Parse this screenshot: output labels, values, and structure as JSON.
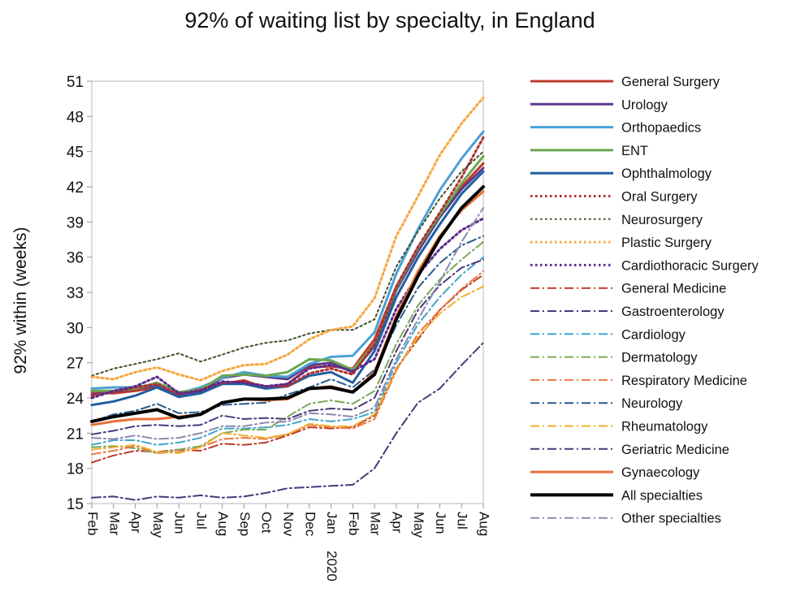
{
  "chart_data": {
    "type": "line",
    "title": "92% of waiting list by specialty, in England",
    "xlabel": "",
    "ylabel": "92% within  (weeks)",
    "ylim": [
      15,
      51
    ],
    "yticks": [
      15,
      18,
      21,
      24,
      27,
      30,
      33,
      36,
      39,
      42,
      45,
      48,
      51
    ],
    "categories": [
      "Feb",
      "Mar",
      "Apr",
      "May",
      "Jun",
      "Jul",
      "Aug",
      "Sep",
      "Oct",
      "Nov",
      "Dec",
      "Jan",
      "Feb",
      "Mar",
      "Apr",
      "May",
      "Jun",
      "Jul",
      "Aug"
    ],
    "year_label": "2020",
    "grid": false,
    "legend_position": "right",
    "series": [
      {
        "name": "General Surgery",
        "color": "#c0392b",
        "style": "solid",
        "width": 3,
        "values": [
          24.5,
          24.4,
          24.6,
          24.9,
          24.1,
          24.4,
          25.2,
          25.5,
          24.8,
          25.2,
          26.6,
          26.7,
          26.5,
          29.0,
          33.5,
          36.8,
          39.6,
          42.0,
          44.0
        ]
      },
      {
        "name": "Urology",
        "color": "#5b3a8c",
        "style": "solid",
        "width": 3,
        "values": [
          24.3,
          24.5,
          24.8,
          25.1,
          24.3,
          24.6,
          25.7,
          26.0,
          25.8,
          25.6,
          26.8,
          27.0,
          26.2,
          28.4,
          33.2,
          36.5,
          39.4,
          41.8,
          43.6
        ]
      },
      {
        "name": "Orthopaedics",
        "color": "#4a9fd5",
        "style": "solid",
        "width": 3,
        "values": [
          24.8,
          24.9,
          24.9,
          25.2,
          24.4,
          24.9,
          25.7,
          26.2,
          25.9,
          25.8,
          26.9,
          27.5,
          27.6,
          29.6,
          34.6,
          38.4,
          41.7,
          44.4,
          46.7
        ]
      },
      {
        "name": "ENT",
        "color": "#6aa84f",
        "style": "solid",
        "width": 3,
        "values": [
          24.6,
          24.6,
          24.8,
          25.3,
          24.5,
          24.7,
          25.9,
          26.0,
          25.9,
          26.2,
          27.3,
          27.2,
          26.4,
          28.6,
          33.4,
          36.8,
          39.6,
          42.3,
          44.6
        ]
      },
      {
        "name": "Ophthalmology",
        "color": "#1f5fa0",
        "style": "solid",
        "width": 3,
        "values": [
          23.4,
          23.7,
          24.2,
          24.9,
          24.1,
          24.4,
          25.2,
          25.2,
          24.8,
          25.0,
          25.9,
          26.2,
          25.3,
          28.0,
          32.6,
          36.0,
          38.8,
          41.4,
          43.3
        ]
      },
      {
        "name": "Oral Surgery",
        "color": "#b03030",
        "style": "dot",
        "width": 3,
        "values": [
          24.2,
          24.5,
          24.9,
          25.2,
          24.3,
          24.7,
          25.3,
          25.4,
          25.0,
          25.0,
          26.1,
          26.5,
          26.0,
          28.6,
          33.5,
          36.9,
          39.8,
          42.8,
          46.2
        ]
      },
      {
        "name": "Neurosurgery",
        "color": "#3d5229",
        "style": "dot",
        "width": 2,
        "values": [
          25.9,
          26.5,
          26.9,
          27.3,
          27.8,
          27.1,
          27.7,
          28.3,
          28.7,
          28.9,
          29.5,
          29.8,
          29.8,
          30.7,
          35.2,
          38.2,
          41.0,
          43.3,
          45.0
        ]
      },
      {
        "name": "Plastic Surgery",
        "color": "#f5a841",
        "style": "dot",
        "width": 3,
        "values": [
          25.8,
          25.6,
          26.2,
          26.6,
          26.0,
          25.5,
          26.3,
          26.8,
          26.9,
          27.7,
          29.0,
          29.8,
          30.1,
          32.5,
          37.8,
          41.2,
          44.7,
          47.4,
          49.6
        ]
      },
      {
        "name": "Cardiothoracic Surgery",
        "color": "#5b2a8c",
        "style": "dot",
        "width": 3,
        "values": [
          24.0,
          24.6,
          25.0,
          25.8,
          24.4,
          24.6,
          25.4,
          25.3,
          25.0,
          25.2,
          26.5,
          26.8,
          26.3,
          27.3,
          31.6,
          34.5,
          36.7,
          38.3,
          39.3
        ]
      },
      {
        "name": "General Medicine",
        "color": "#c0392b",
        "style": "dashdot",
        "width": 2,
        "values": [
          18.5,
          19.1,
          19.5,
          19.4,
          19.6,
          19.5,
          20.1,
          20.0,
          20.2,
          20.8,
          21.5,
          21.4,
          21.5,
          22.5,
          26.5,
          29.0,
          31.5,
          33.2,
          34.5
        ]
      },
      {
        "name": "Gastroenterology",
        "color": "#4a3a7a",
        "style": "dashdot",
        "width": 2,
        "values": [
          15.5,
          15.6,
          15.3,
          15.6,
          15.5,
          15.7,
          15.5,
          15.6,
          15.9,
          16.3,
          16.4,
          16.5,
          16.6,
          18.0,
          21.0,
          23.6,
          24.8,
          26.8,
          28.7
        ]
      },
      {
        "name": "Cardiology",
        "color": "#41a5c8",
        "style": "dashdot",
        "width": 2,
        "values": [
          20.0,
          20.4,
          20.4,
          20.0,
          20.2,
          20.6,
          21.4,
          21.4,
          21.5,
          21.7,
          22.2,
          22.0,
          22.2,
          22.8,
          27.0,
          30.3,
          32.6,
          34.5,
          36.0
        ]
      },
      {
        "name": "Dermatology",
        "color": "#7aa85a",
        "style": "dashdot",
        "width": 2,
        "values": [
          19.8,
          19.9,
          19.7,
          19.3,
          19.6,
          19.9,
          21.0,
          21.3,
          21.3,
          22.4,
          23.5,
          23.8,
          23.5,
          24.6,
          28.6,
          31.9,
          34.1,
          35.8,
          37.3
        ]
      },
      {
        "name": "Respiratory Medicine",
        "color": "#e8783d",
        "style": "dashdot",
        "width": 2,
        "values": [
          19.2,
          19.5,
          19.9,
          19.3,
          19.4,
          19.8,
          20.5,
          20.6,
          20.5,
          20.9,
          21.7,
          21.5,
          21.4,
          22.2,
          26.3,
          29.5,
          31.5,
          33.3,
          34.8
        ]
      },
      {
        "name": "Neurology",
        "color": "#2a5a8a",
        "style": "dashdot",
        "width": 2,
        "values": [
          22.0,
          22.6,
          22.9,
          23.5,
          22.7,
          22.8,
          23.4,
          23.5,
          23.6,
          24.3,
          24.9,
          25.6,
          24.9,
          26.4,
          30.2,
          33.4,
          35.5,
          37.0,
          37.8
        ]
      },
      {
        "name": "Rheumatology",
        "color": "#f0b030",
        "style": "dashdot",
        "width": 2,
        "values": [
          19.6,
          19.8,
          20.0,
          19.4,
          19.3,
          19.8,
          21.0,
          20.8,
          20.6,
          20.9,
          21.8,
          21.6,
          21.6,
          22.6,
          26.4,
          29.2,
          31.2,
          32.6,
          33.5
        ]
      },
      {
        "name": "Geriatric Medicine",
        "color": "#4a3a7a",
        "style": "dashdot",
        "width": 2,
        "values": [
          20.9,
          21.2,
          21.6,
          21.7,
          21.6,
          21.7,
          22.5,
          22.2,
          22.3,
          22.2,
          22.9,
          23.1,
          23.0,
          24.0,
          28.0,
          31.5,
          33.6,
          35.1,
          35.8
        ]
      },
      {
        "name": "Gynaecology",
        "color": "#e8703a",
        "style": "solid",
        "width": 3,
        "values": [
          21.7,
          22.0,
          22.2,
          22.2,
          22.4,
          22.6,
          23.6,
          23.9,
          23.8,
          23.9,
          24.8,
          25.0,
          24.5,
          26.2,
          31.0,
          34.8,
          37.8,
          40.0,
          41.6
        ]
      },
      {
        "name": "All specialties",
        "color": "#000000",
        "style": "solid",
        "width": 4,
        "values": [
          22.0,
          22.4,
          22.7,
          23.0,
          22.3,
          22.6,
          23.6,
          23.9,
          23.9,
          24.0,
          24.8,
          24.9,
          24.5,
          26.0,
          30.7,
          34.4,
          37.6,
          40.2,
          42.0
        ]
      },
      {
        "name": "Other specialties",
        "color": "#8a8ab0",
        "style": "dashdot",
        "width": 2,
        "values": [
          20.6,
          20.5,
          20.8,
          20.5,
          20.6,
          21.0,
          21.6,
          21.6,
          21.9,
          22.0,
          22.7,
          22.6,
          22.4,
          23.2,
          27.3,
          30.7,
          33.9,
          37.3,
          40.2
        ]
      }
    ]
  }
}
